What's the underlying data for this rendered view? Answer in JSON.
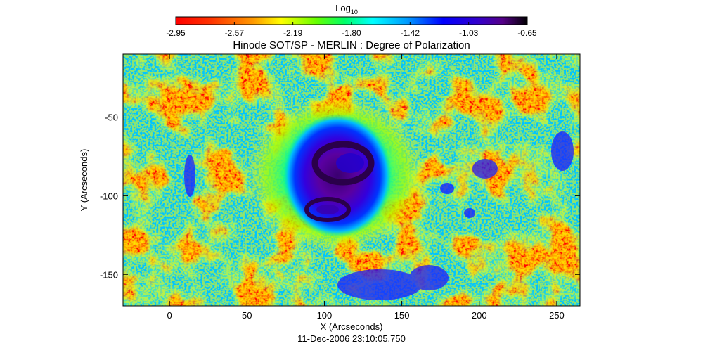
{
  "colorbar": {
    "label_main": "Log",
    "label_sub": "10",
    "ticks": [
      "-2.95",
      "-2.57",
      "-2.19",
      "-1.80",
      "-1.42",
      "-1.03",
      "-0.65"
    ],
    "colors": [
      "#ff0000",
      "#ff3300",
      "#ff9900",
      "#ffff00",
      "#66ff00",
      "#00ff66",
      "#00ffff",
      "#0099ff",
      "#0000ff",
      "#3300cc",
      "#550088",
      "#000000"
    ]
  },
  "plot": {
    "title": "Hinode SOT/SP - MERLIN : Degree of Polarization",
    "xlabel": "X (Arcseconds)",
    "ylabel": "Y (Arcseconds)",
    "xticks": [
      "0",
      "50",
      "100",
      "150",
      "200",
      "250"
    ],
    "yticks": [
      "-50",
      "-100",
      "-150"
    ],
    "xrange": [
      -30,
      265
    ],
    "yrange": [
      -170,
      -10
    ]
  },
  "footer": {
    "timestamp": "11-Dec-2006 23:10:05.750"
  }
}
